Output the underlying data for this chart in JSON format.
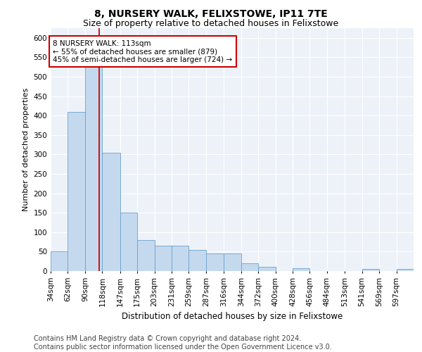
{
  "title": "8, NURSERY WALK, FELIXSTOWE, IP11 7TE",
  "subtitle": "Size of property relative to detached houses in Felixstowe",
  "xlabel": "Distribution of detached houses by size in Felixstowe",
  "ylabel": "Number of detached properties",
  "bar_color": "#c5d9ee",
  "bar_edge_color": "#6aa0cc",
  "vline_color": "#cc0000",
  "vline_x": 113,
  "annotation_text": "8 NURSERY WALK: 113sqm\n← 55% of detached houses are smaller (879)\n45% of semi-detached houses are larger (724) →",
  "annotation_box_color": "white",
  "annotation_box_edge_color": "#cc0000",
  "categories": [
    "34sqm",
    "62sqm",
    "90sqm",
    "118sqm",
    "147sqm",
    "175sqm",
    "203sqm",
    "231sqm",
    "259sqm",
    "287sqm",
    "316sqm",
    "344sqm",
    "372sqm",
    "400sqm",
    "428sqm",
    "456sqm",
    "484sqm",
    "513sqm",
    "541sqm",
    "569sqm",
    "597sqm"
  ],
  "bin_edges": [
    34,
    62,
    90,
    118,
    147,
    175,
    203,
    231,
    259,
    287,
    316,
    344,
    372,
    400,
    428,
    456,
    484,
    513,
    541,
    569,
    597,
    625
  ],
  "values": [
    50,
    410,
    570,
    305,
    150,
    80,
    65,
    65,
    55,
    45,
    45,
    20,
    10,
    0,
    8,
    0,
    0,
    0,
    5,
    0,
    5
  ],
  "ylim": [
    0,
    625
  ],
  "yticks": [
    0,
    50,
    100,
    150,
    200,
    250,
    300,
    350,
    400,
    450,
    500,
    550,
    600
  ],
  "background_color": "#edf2f9",
  "grid_color": "#ffffff",
  "footer_text": "Contains HM Land Registry data © Crown copyright and database right 2024.\nContains public sector information licensed under the Open Government Licence v3.0.",
  "title_fontsize": 10,
  "subtitle_fontsize": 9,
  "xlabel_fontsize": 8.5,
  "ylabel_fontsize": 8,
  "tick_fontsize": 7.5,
  "footer_fontsize": 7,
  "annotation_fontsize": 7.5
}
